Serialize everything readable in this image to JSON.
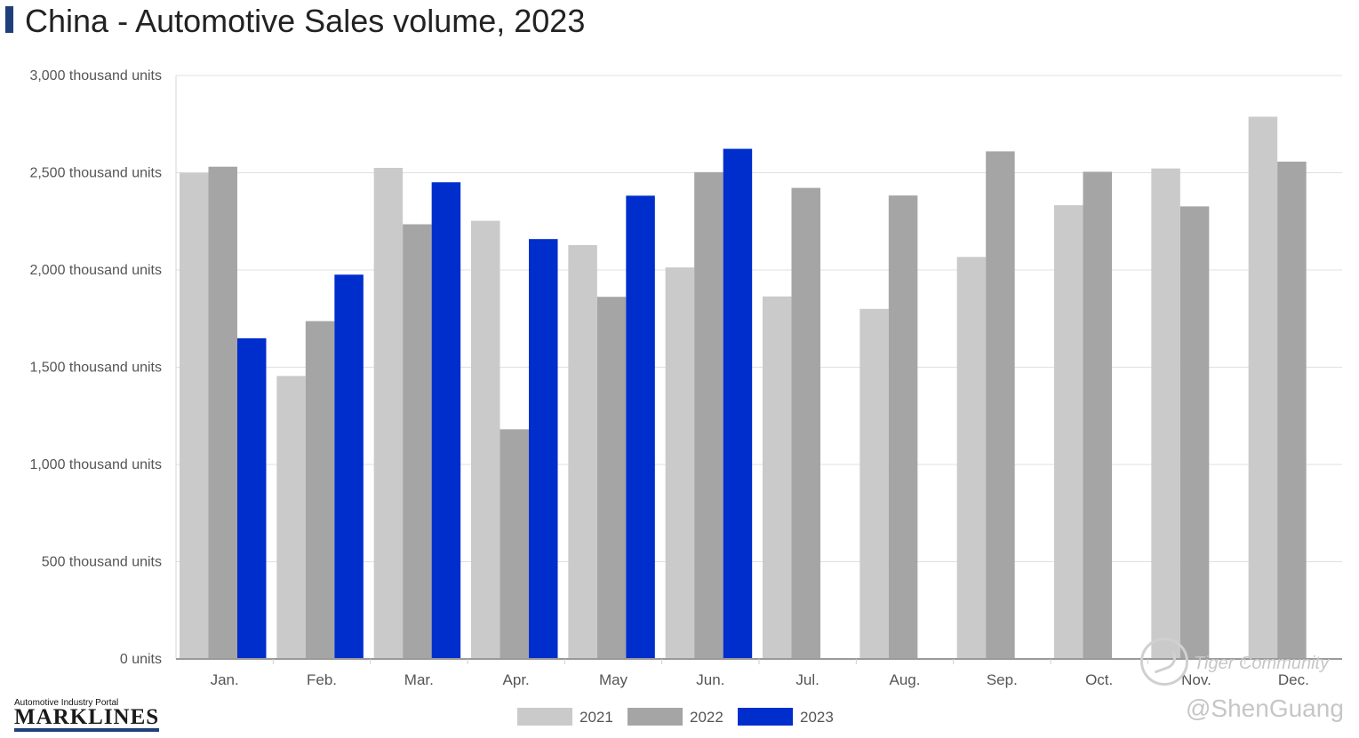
{
  "title": "China - Automotive Sales volume, 2023",
  "brand": {
    "tagline": "Automotive Industry Portal",
    "name": "MARKLINES"
  },
  "watermark": {
    "community": "Tiger Community",
    "handle": "@ShenGuang"
  },
  "colors": {
    "2021": "#cacaca",
    "2022": "#a5a5a5",
    "2023": "#002ecc",
    "grid": "#e0e0e0",
    "axis": "#9a9a9a",
    "title_bar": "#1e3f7a"
  },
  "chart_data": {
    "type": "bar",
    "title": "China - Automotive Sales volume, 2023",
    "categories": [
      "Jan.",
      "Feb.",
      "Mar.",
      "Apr.",
      "May",
      "Jun.",
      "Jul.",
      "Aug.",
      "Sep.",
      "Oct.",
      "Nov.",
      "Dec."
    ],
    "series": [
      {
        "name": "2021",
        "values": [
          2500,
          1455,
          2525,
          2253,
          2128,
          2013,
          1864,
          1800,
          2067,
          2333,
          2522,
          2788
        ]
      },
      {
        "name": "2022",
        "values": [
          2531,
          1737,
          2235,
          1181,
          1862,
          2503,
          2422,
          2383,
          2610,
          2505,
          2327,
          2557
        ]
      },
      {
        "name": "2023",
        "values": [
          1649,
          1976,
          2451,
          2159,
          2382,
          2623,
          null,
          null,
          null,
          null,
          null,
          null
        ]
      }
    ],
    "ylim": [
      0,
      3000
    ],
    "yticks": [
      0,
      500,
      1000,
      1500,
      2000,
      2500,
      3000
    ],
    "ytick_labels": [
      "0 units",
      "500 thousand units",
      "1,000 thousand units",
      "1,500 thousand units",
      "2,000 thousand units",
      "2,500 thousand units",
      "3,000 thousand units"
    ],
    "grid": true,
    "legend_position": "bottom-center"
  }
}
